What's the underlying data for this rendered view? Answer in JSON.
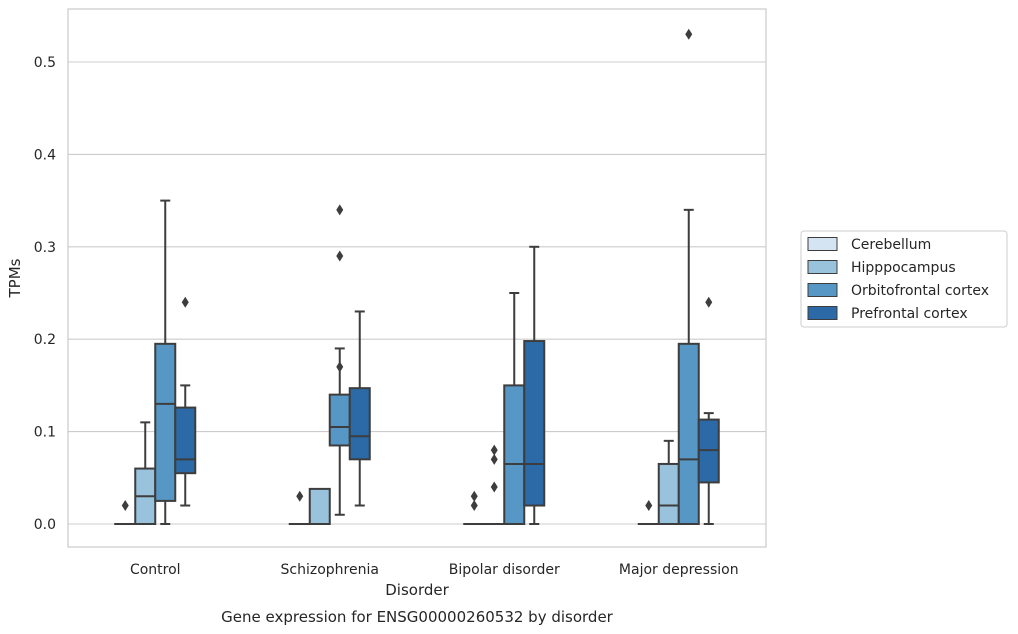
{
  "chart_data": {
    "type": "box",
    "title": "Gene expression for ENSG00000260532 by disorder",
    "xlabel": "Disorder",
    "ylabel": "TPMs",
    "ylim": [
      -0.025,
      0.557
    ],
    "yticks": [
      "0.0",
      "0.1",
      "0.2",
      "0.3",
      "0.4",
      "0.5"
    ],
    "grid": "horizontal",
    "legend_position": "right",
    "categories": [
      "Control",
      "Schizophrenia",
      "Bipolar disorder",
      "Major depression"
    ],
    "series": [
      {
        "name": "Cerebellum",
        "color": "#d5e4f2",
        "boxes": [
          {
            "q1": 0,
            "median": 0,
            "q3": 0,
            "whisker_low": 0,
            "whisker_high": 0,
            "outliers": [
              0.02
            ]
          },
          {
            "q1": 0,
            "median": 0,
            "q3": 0,
            "whisker_low": 0,
            "whisker_high": 0,
            "outliers": [
              0.03
            ]
          },
          {
            "q1": 0,
            "median": 0,
            "q3": 0,
            "whisker_low": 0,
            "whisker_high": 0,
            "outliers": [
              0.02,
              0.03
            ]
          },
          {
            "q1": 0,
            "median": 0,
            "q3": 0,
            "whisker_low": 0,
            "whisker_high": 0,
            "outliers": [
              0.02
            ]
          }
        ]
      },
      {
        "name": "Hipppocampus",
        "color": "#99c2dc",
        "boxes": [
          {
            "q1": 0,
            "median": 0.03,
            "q3": 0.06,
            "whisker_low": 0,
            "whisker_high": 0.11,
            "outliers": []
          },
          {
            "q1": 0,
            "median": 0,
            "q3": 0.038,
            "whisker_low": 0,
            "whisker_high": 0.038,
            "outliers": []
          },
          {
            "q1": 0,
            "median": 0,
            "q3": 0,
            "whisker_low": 0,
            "whisker_high": 0,
            "outliers": [
              0.04,
              0.07,
              0.08
            ]
          },
          {
            "q1": 0,
            "median": 0.02,
            "q3": 0.065,
            "whisker_low": 0,
            "whisker_high": 0.09,
            "outliers": []
          }
        ]
      },
      {
        "name": "Orbitofrontal cortex",
        "color": "#5697c5",
        "boxes": [
          {
            "q1": 0.025,
            "median": 0.13,
            "q3": 0.195,
            "whisker_low": 0,
            "whisker_high": 0.35,
            "outliers": []
          },
          {
            "q1": 0.085,
            "median": 0.105,
            "q3": 0.14,
            "whisker_low": 0.01,
            "whisker_high": 0.19,
            "outliers": [
              0.17,
              0.29,
              0.34
            ]
          },
          {
            "q1": 0,
            "median": 0.065,
            "q3": 0.15,
            "whisker_low": 0,
            "whisker_high": 0.25,
            "outliers": []
          },
          {
            "q1": 0,
            "median": 0.07,
            "q3": 0.195,
            "whisker_low": 0,
            "whisker_high": 0.34,
            "outliers": [
              0.53
            ]
          }
        ]
      },
      {
        "name": "Prefrontal cortex",
        "color": "#2b6aa6",
        "boxes": [
          {
            "q1": 0.055,
            "median": 0.07,
            "q3": 0.126,
            "whisker_low": 0.02,
            "whisker_high": 0.15,
            "outliers": [
              0.24
            ]
          },
          {
            "q1": 0.07,
            "median": 0.095,
            "q3": 0.147,
            "whisker_low": 0.02,
            "whisker_high": 0.23,
            "outliers": []
          },
          {
            "q1": 0.02,
            "median": 0.065,
            "q3": 0.198,
            "whisker_low": 0,
            "whisker_high": 0.3,
            "outliers": []
          },
          {
            "q1": 0.045,
            "median": 0.08,
            "q3": 0.113,
            "whisker_low": 0,
            "whisker_high": 0.12,
            "outliers": [
              0.24
            ]
          }
        ]
      }
    ]
  }
}
